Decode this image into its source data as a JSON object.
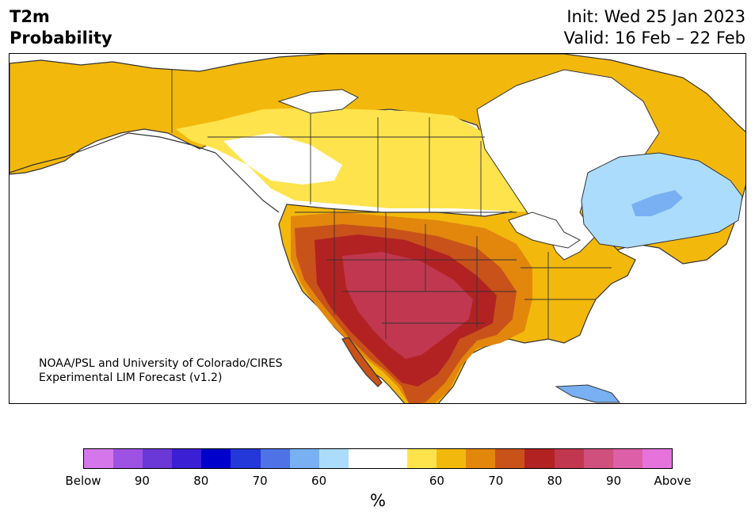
{
  "header": {
    "title_line1": "T2m",
    "title_line2": "Probability",
    "init": "Init: Wed 25 Jan 2023",
    "valid": "Valid: 16 Feb – 22 Feb"
  },
  "credit": {
    "line1": "NOAA/PSL and University of Colorado/CIRES",
    "line2": "Experimental LIM Forecast (v1.2)"
  },
  "colorbar": {
    "colors": [
      "#d577ea",
      "#9e52e3",
      "#6b38d8",
      "#3a1fd4",
      "#0000cc",
      "#2437d8",
      "#4f72e6",
      "#78b0f3",
      "#acdcfb",
      "#ffffff",
      "#ffffff",
      "#fee34c",
      "#f3b80c",
      "#e2870c",
      "#c8521a",
      "#b22222",
      "#c1374f",
      "#cf4f7d",
      "#dc5fa8",
      "#e673dc"
    ],
    "tick_labels": [
      "Below",
      "90",
      "80",
      "70",
      "60",
      "60",
      "70",
      "80",
      "90",
      "Above"
    ],
    "unit": "%"
  },
  "map_colors": {
    "ocean": "#ffffff",
    "coast": "#333333",
    "yellow": "#fee34c",
    "gold": "#f3b80c",
    "orange": "#e2870c",
    "darkorange": "#c8521a",
    "red": "#b22222",
    "crimson": "#c1374f",
    "lightblue": "#acdcfb",
    "blue": "#78b0f3"
  }
}
